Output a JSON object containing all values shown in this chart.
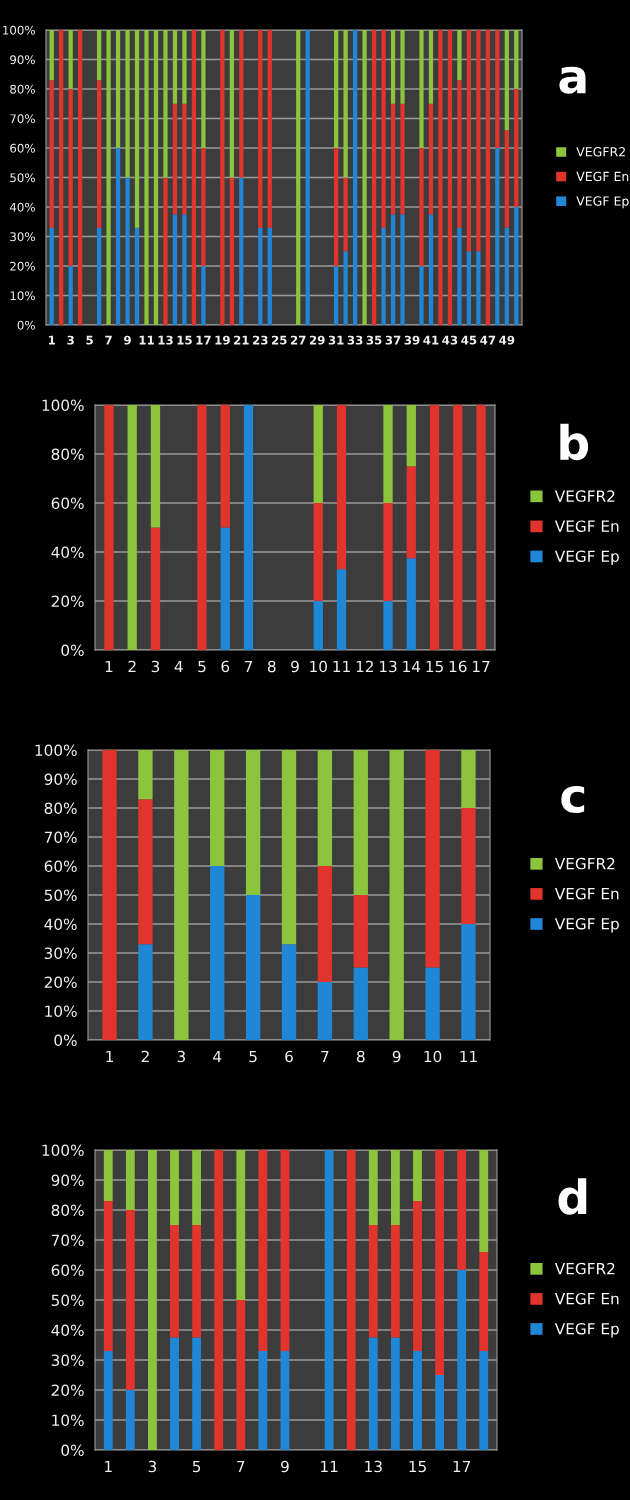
{
  "chart_data": [
    {
      "type": "bar",
      "annotations": [
        "a"
      ],
      "stacked": true,
      "grid": "y",
      "legend": "right",
      "categories": [
        "1",
        null,
        "3",
        null,
        "5",
        null,
        "7",
        null,
        "9",
        null,
        "11",
        null,
        "13",
        null,
        "15",
        null,
        "17",
        null,
        "19",
        null,
        "21",
        null,
        "23",
        null,
        "25",
        null,
        "27",
        null,
        "29",
        null,
        "31",
        null,
        "33",
        null,
        "35",
        null,
        "37",
        null,
        "39",
        null,
        "41",
        null,
        "43",
        null,
        "45",
        null,
        "47",
        null,
        "49",
        null
      ],
      "ylim": [
        0,
        100
      ],
      "yticks": [
        {
          "value": 0,
          "label": "0%"
        },
        {
          "value": 10,
          "label": "10%"
        },
        {
          "value": 20,
          "label": "20%"
        },
        {
          "value": 30,
          "label": "30%"
        },
        {
          "value": 40,
          "label": "40%"
        },
        {
          "value": 50,
          "label": "50%"
        },
        {
          "value": 60,
          "label": "60%"
        },
        {
          "value": 70,
          "label": "70%"
        },
        {
          "value": 80,
          "label": "80%"
        },
        {
          "value": 90,
          "label": "90%"
        },
        {
          "value": 100,
          "label": "100%"
        }
      ],
      "series": [
        {
          "name": "VEGF Ep",
          "color": "#1f87d6",
          "values": [
            33,
            null,
            20,
            null,
            null,
            33,
            null,
            60,
            50,
            33,
            null,
            null,
            null,
            37.5,
            37.5,
            null,
            20,
            null,
            null,
            null,
            50,
            null,
            33,
            33,
            null,
            null,
            null,
            100,
            null,
            null,
            20,
            25,
            100,
            null,
            null,
            33,
            37.5,
            37.5,
            null,
            20,
            37.5,
            null,
            null,
            33,
            25,
            25,
            null,
            60,
            33,
            40
          ]
        },
        {
          "name": "VEGF En",
          "color": "#e0342c",
          "values": [
            50,
            100,
            60,
            100,
            null,
            50,
            null,
            null,
            null,
            null,
            null,
            null,
            50,
            37.5,
            37.5,
            100,
            40,
            null,
            100,
            50,
            50,
            null,
            67,
            67,
            null,
            null,
            null,
            null,
            null,
            null,
            40,
            25,
            null,
            null,
            100,
            67,
            37.5,
            37.5,
            null,
            40,
            37.5,
            100,
            100,
            50,
            75,
            75,
            100,
            40,
            33,
            40
          ]
        },
        {
          "name": "VEGFR2",
          "color": "#8cc43c",
          "values": [
            17,
            null,
            20,
            null,
            null,
            17,
            100,
            40,
            50,
            67,
            100,
            100,
            50,
            25,
            25,
            null,
            40,
            null,
            null,
            50,
            null,
            null,
            null,
            null,
            null,
            null,
            100,
            null,
            null,
            null,
            40,
            50,
            null,
            100,
            null,
            null,
            25,
            25,
            null,
            40,
            25,
            null,
            null,
            17,
            null,
            null,
            null,
            null,
            34,
            20
          ]
        }
      ]
    },
    {
      "type": "bar",
      "annotations": [
        "b"
      ],
      "stacked": true,
      "grid": "y",
      "legend": "right",
      "categories": [
        "1",
        "2",
        "3",
        "4",
        "5",
        "6",
        "7",
        "8",
        "9",
        "10",
        "11",
        "12",
        "13",
        "14",
        "15",
        "16",
        "17"
      ],
      "ylim": [
        0,
        100
      ],
      "yticks": [
        {
          "value": 0,
          "label": "0%"
        },
        {
          "value": 20,
          "label": "20%"
        },
        {
          "value": 40,
          "label": "40%"
        },
        {
          "value": 60,
          "label": "60%"
        },
        {
          "value": 80,
          "label": "80%"
        },
        {
          "value": 100,
          "label": "100%"
        }
      ],
      "series": [
        {
          "name": "VEGF Ep",
          "color": "#1f87d6",
          "values": [
            null,
            null,
            null,
            null,
            null,
            50,
            100,
            null,
            null,
            20,
            33,
            null,
            20,
            37.5,
            null,
            null,
            null
          ]
        },
        {
          "name": "VEGF En",
          "color": "#e0342c",
          "values": [
            100,
            null,
            50,
            null,
            100,
            50,
            null,
            null,
            null,
            40,
            67,
            null,
            40,
            37.5,
            100,
            100,
            100
          ]
        },
        {
          "name": "VEGFR2",
          "color": "#8cc43c",
          "values": [
            null,
            100,
            50,
            null,
            null,
            null,
            null,
            null,
            null,
            40,
            null,
            null,
            40,
            25,
            null,
            null,
            null
          ]
        }
      ]
    },
    {
      "type": "bar",
      "annotations": [
        "c"
      ],
      "stacked": true,
      "grid": "y",
      "legend": "right",
      "categories": [
        "1",
        "2",
        "3",
        "4",
        "5",
        "6",
        "7",
        "8",
        "9",
        "10",
        "11"
      ],
      "ylim": [
        0,
        100
      ],
      "yticks": [
        {
          "value": 0,
          "label": "0%"
        },
        {
          "value": 10,
          "label": "10%"
        },
        {
          "value": 20,
          "label": "20%"
        },
        {
          "value": 30,
          "label": "30%"
        },
        {
          "value": 40,
          "label": "40%"
        },
        {
          "value": 50,
          "label": "50%"
        },
        {
          "value": 60,
          "label": "60%"
        },
        {
          "value": 70,
          "label": "70%"
        },
        {
          "value": 80,
          "label": "80%"
        },
        {
          "value": 90,
          "label": "90%"
        },
        {
          "value": 100,
          "label": "100%"
        }
      ],
      "series": [
        {
          "name": "VEGF Ep",
          "color": "#1f87d6",
          "values": [
            null,
            33,
            null,
            60,
            50,
            33,
            20,
            25,
            null,
            25,
            40
          ]
        },
        {
          "name": "VEGF En",
          "color": "#e0342c",
          "values": [
            100,
            50,
            null,
            null,
            null,
            null,
            40,
            25,
            null,
            75,
            40
          ]
        },
        {
          "name": "VEGFR2",
          "color": "#8cc43c",
          "values": [
            null,
            17,
            100,
            40,
            50,
            67,
            40,
            50,
            100,
            null,
            20
          ]
        }
      ]
    },
    {
      "type": "bar",
      "annotations": [
        "d"
      ],
      "stacked": true,
      "grid": "y",
      "legend": "right",
      "categories": [
        "1",
        null,
        "3",
        null,
        "5",
        null,
        "7",
        null,
        "9",
        null,
        "11",
        null,
        "13",
        null,
        "15",
        null,
        "17",
        null
      ],
      "ylim": [
        0,
        100
      ],
      "yticks": [
        {
          "value": 0,
          "label": "0%"
        },
        {
          "value": 10,
          "label": "10%"
        },
        {
          "value": 20,
          "label": "20%"
        },
        {
          "value": 30,
          "label": "30%"
        },
        {
          "value": 40,
          "label": "40%"
        },
        {
          "value": 50,
          "label": "50%"
        },
        {
          "value": 60,
          "label": "60%"
        },
        {
          "value": 70,
          "label": "70%"
        },
        {
          "value": 80,
          "label": "80%"
        },
        {
          "value": 90,
          "label": "90%"
        },
        {
          "value": 100,
          "label": "100%"
        }
      ],
      "series": [
        {
          "name": "VEGF Ep",
          "color": "#1f87d6",
          "values": [
            33,
            20,
            null,
            37.5,
            37.5,
            null,
            null,
            33,
            33,
            null,
            100,
            null,
            37.5,
            37.5,
            33,
            25,
            60,
            33
          ]
        },
        {
          "name": "VEGF En",
          "color": "#e0342c",
          "values": [
            50,
            60,
            null,
            37.5,
            37.5,
            100,
            50,
            67,
            67,
            null,
            null,
            100,
            37.5,
            37.5,
            50,
            75,
            40,
            33
          ]
        },
        {
          "name": "VEGFR2",
          "color": "#8cc43c",
          "values": [
            17,
            20,
            100,
            25,
            25,
            null,
            50,
            null,
            null,
            null,
            null,
            null,
            25,
            25,
            17,
            null,
            null,
            34
          ]
        }
      ]
    }
  ]
}
